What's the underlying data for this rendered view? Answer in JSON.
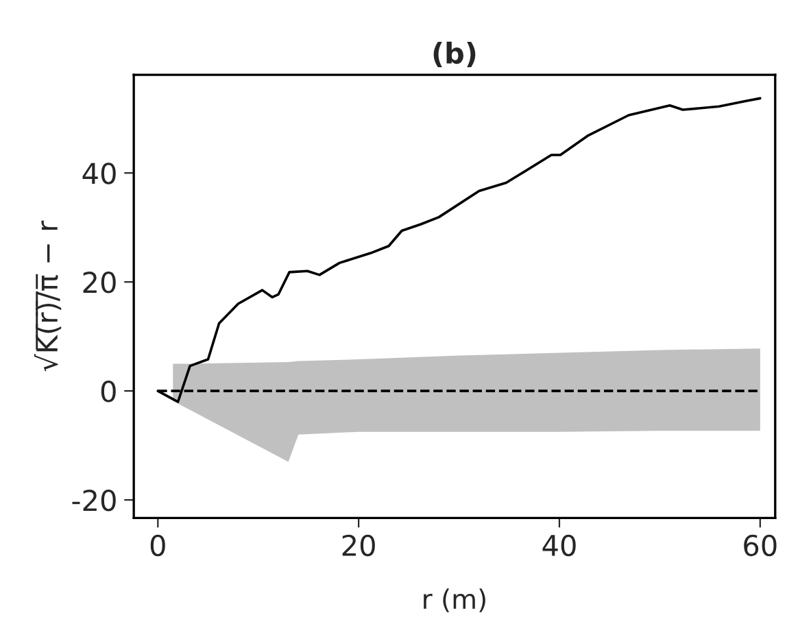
{
  "chart_data": {
    "type": "line",
    "title": "(b)",
    "xlabel": "r (m)",
    "ylabel": "√K̅(̅r̅)̅/̅π̅ − r",
    "xlim": [
      -2.4,
      61.5
    ],
    "ylim": [
      -23.3,
      58
    ],
    "xticks": [
      0,
      20,
      40,
      60
    ],
    "yticks": [
      -20,
      0,
      20,
      40
    ],
    "grid": false,
    "series": [
      {
        "color": "#c0c0c0",
        "x": [
          1.5,
          3,
          13,
          14,
          20,
          30,
          40,
          50,
          60
        ],
        "values": [
          null,
          null,
          null,
          null,
          null,
          null,
          null,
          null,
          null
        ],
        "lower": [
          -1.8,
          -3.3,
          -13,
          -8,
          -7.5,
          -7.5,
          -7.5,
          -7.3,
          -7.3
        ],
        "upper": [
          5,
          5,
          5.3,
          5.5,
          5.8,
          6.5,
          7,
          7.5,
          7.8
        ]
      },
      {
        "color": "#000000",
        "x": [
          0,
          2.0,
          3.2,
          5.0,
          6.1,
          8.0,
          10.4,
          11.4,
          12,
          13.1,
          14.9,
          16.1,
          18.1,
          21.2,
          23,
          24.3,
          26.2,
          28,
          32,
          34.7,
          39.2,
          40.1,
          42.8,
          46.9,
          51,
          52.3,
          55.9,
          58.6,
          60
        ],
        "values": [
          0,
          -2.0,
          4.6,
          5.8,
          12.4,
          16,
          18.5,
          17.2,
          17.7,
          21.8,
          22,
          21.3,
          23.5,
          25.3,
          26.6,
          29.4,
          30.6,
          31.9,
          36.7,
          38.2,
          43.3,
          43.3,
          46.8,
          50.6,
          52.4,
          51.6,
          52.2,
          53.2,
          53.7
        ]
      }
    ],
    "ref_lines": [
      {
        "axis": "y",
        "value": 0,
        "color": "#000000",
        "line_style": "dashed"
      }
    ]
  }
}
